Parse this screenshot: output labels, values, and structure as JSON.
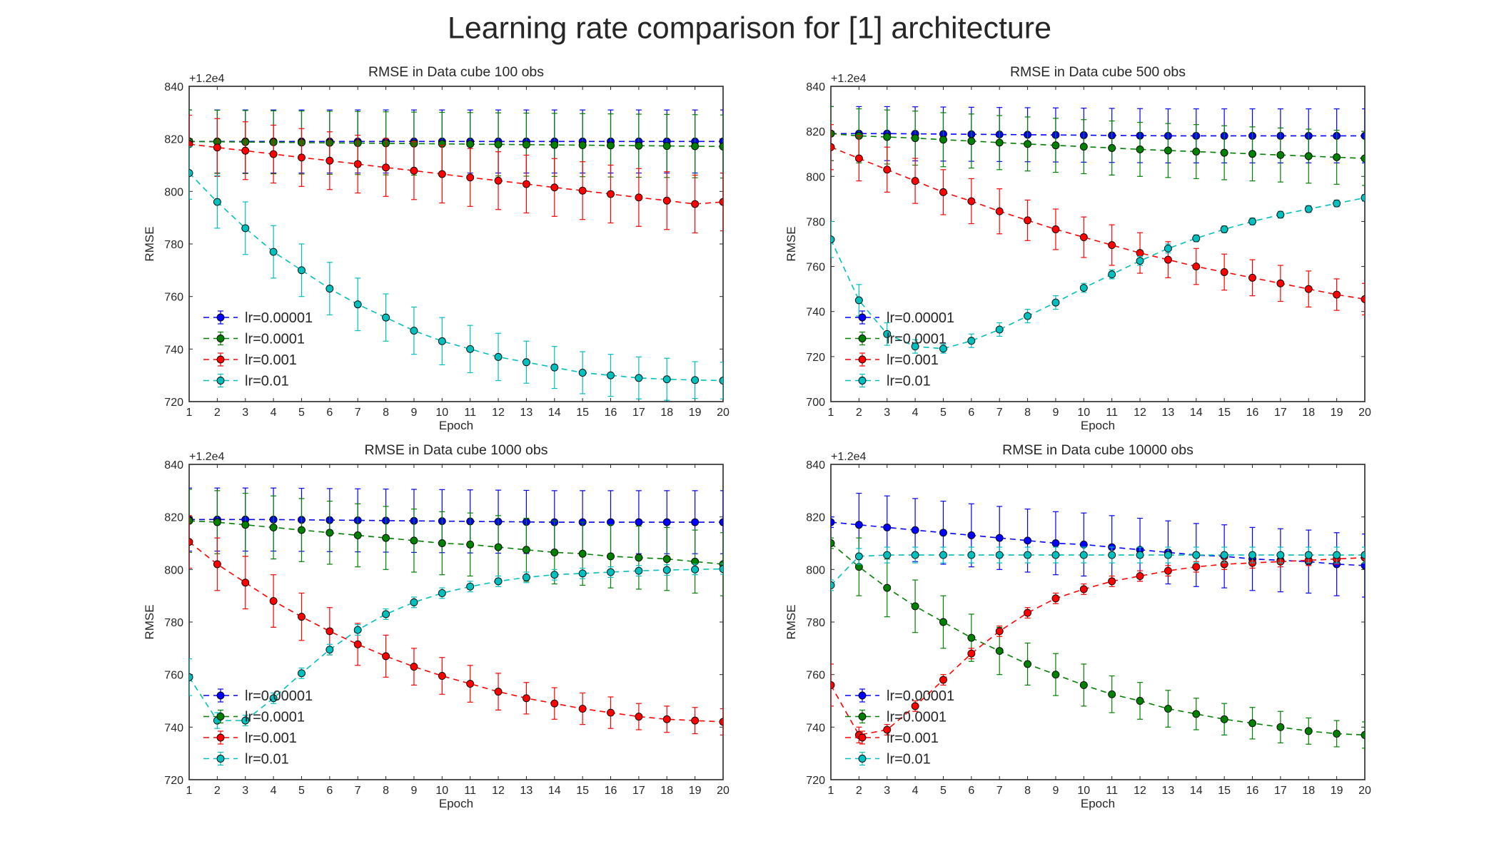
{
  "figure_title": "Learning rate comparison for [1] architecture",
  "colors": {
    "lr=0.00001": "#0000ff",
    "lr=0.0001": "#008000",
    "lr=0.001": "#ff0000",
    "lr=0.01": "#00bfbf"
  },
  "chart_data": [
    {
      "type": "line",
      "title": "RMSE in Data cube 100 obs",
      "xlabel": "Epoch",
      "ylabel": "RMSE",
      "offset_label": "+1.2e4",
      "x": [
        1,
        2,
        3,
        4,
        5,
        6,
        7,
        8,
        9,
        10,
        11,
        12,
        13,
        14,
        15,
        16,
        17,
        18,
        19,
        20
      ],
      "xlim": [
        1,
        20
      ],
      "ylim": [
        720,
        840
      ],
      "yticks": [
        720,
        740,
        760,
        780,
        800,
        820,
        840
      ],
      "series": [
        {
          "name": "lr=0.00001",
          "values": [
            819,
            819,
            819,
            819,
            819,
            819,
            819,
            819,
            819,
            819,
            819,
            819,
            819,
            819,
            819,
            819,
            819,
            819,
            819,
            819
          ],
          "err": [
            12,
            12,
            12,
            12,
            12,
            12,
            12,
            12,
            12,
            12,
            12,
            12,
            12,
            12,
            12,
            12,
            12,
            12,
            12,
            12
          ]
        },
        {
          "name": "lr=0.0001",
          "values": [
            819,
            818.9,
            818.8,
            818.7,
            818.6,
            818.5,
            818.4,
            818.3,
            818.2,
            818.1,
            818,
            817.9,
            817.8,
            817.7,
            817.6,
            817.5,
            817.4,
            817.3,
            817.2,
            817.1
          ],
          "err": [
            12,
            12,
            12,
            12,
            12,
            12,
            12,
            12,
            12,
            12,
            12,
            12,
            12,
            12,
            12,
            12,
            12,
            12,
            12,
            12
          ]
        },
        {
          "name": "lr=0.001",
          "values": [
            818,
            816.7,
            815.5,
            814.2,
            812.9,
            811.7,
            810.4,
            809.1,
            807.9,
            806.6,
            805.3,
            804.1,
            802.8,
            801.5,
            800.3,
            799,
            797.7,
            796.5,
            795.2,
            796
          ],
          "err": [
            11,
            11,
            11,
            11,
            11,
            11,
            11,
            11,
            11,
            11,
            11,
            11,
            11,
            11,
            11,
            11,
            11,
            11,
            11,
            11
          ]
        },
        {
          "name": "lr=0.01",
          "values": [
            807,
            796,
            786,
            777,
            770,
            763,
            757,
            752,
            747,
            743,
            740,
            737,
            735,
            733,
            731,
            730,
            729,
            728.5,
            728.2,
            728
          ],
          "err": [
            10,
            10,
            10,
            10,
            10,
            10,
            10,
            9,
            9,
            9,
            9,
            9,
            8,
            8,
            8,
            8,
            8,
            8,
            7,
            7
          ]
        }
      ],
      "legend": "lower-left"
    },
    {
      "type": "line",
      "title": "RMSE in Data cube 500 obs",
      "xlabel": "Epoch",
      "ylabel": "RMSE",
      "offset_label": "+1.2e4",
      "x": [
        1,
        2,
        3,
        4,
        5,
        6,
        7,
        8,
        9,
        10,
        11,
        12,
        13,
        14,
        15,
        16,
        17,
        18,
        19,
        20
      ],
      "xlim": [
        1,
        20
      ],
      "ylim": [
        700,
        840
      ],
      "yticks": [
        700,
        720,
        740,
        760,
        780,
        800,
        820,
        840
      ],
      "series": [
        {
          "name": "lr=0.00001",
          "values": [
            819,
            819,
            819,
            818.9,
            818.8,
            818.7,
            818.6,
            818.5,
            818.4,
            818.3,
            818.2,
            818.1,
            818,
            818,
            818,
            818,
            818,
            818,
            818,
            818
          ],
          "err": [
            12,
            12,
            12,
            12,
            12,
            12,
            12,
            12,
            12,
            12,
            12,
            12,
            12,
            12,
            12,
            12,
            12,
            12,
            12,
            12
          ]
        },
        {
          "name": "lr=0.0001",
          "values": [
            819,
            818,
            817.5,
            817,
            816.3,
            815.7,
            815,
            814.4,
            813.8,
            813.2,
            812.6,
            812,
            811.5,
            811,
            810.5,
            810,
            809.5,
            809,
            808.5,
            808
          ],
          "err": [
            12,
            12,
            12,
            12,
            12,
            12,
            12,
            12,
            12,
            12,
            12,
            12,
            12,
            12,
            12,
            12,
            12,
            12,
            12,
            12
          ]
        },
        {
          "name": "lr=0.001",
          "values": [
            813,
            808,
            803,
            798,
            793,
            789,
            784.5,
            780.5,
            776.5,
            773,
            769.5,
            766,
            763,
            760,
            757.5,
            755,
            752.5,
            750,
            747.5,
            745.5
          ],
          "err": [
            10,
            10,
            10,
            10,
            10,
            10,
            10,
            9,
            9,
            9,
            9,
            9,
            8,
            8,
            8,
            8,
            8,
            8,
            7,
            7
          ]
        },
        {
          "name": "lr=0.01",
          "values": [
            772,
            745,
            730,
            724.5,
            723.5,
            727,
            732,
            738,
            744,
            750.5,
            756.5,
            762.5,
            768,
            772.5,
            776.5,
            780,
            783,
            785.5,
            788,
            790.5
          ],
          "err": [
            8,
            7,
            5,
            3,
            2,
            3,
            3,
            3,
            3,
            2,
            2,
            2,
            2,
            1.5,
            1.5,
            1.5,
            1.5,
            1.5,
            1.5,
            1.5
          ]
        }
      ],
      "legend": "lower-left"
    },
    {
      "type": "line",
      "title": "RMSE in Data cube 1000 obs",
      "xlabel": "Epoch",
      "ylabel": "RMSE",
      "offset_label": "+1.2e4",
      "x": [
        1,
        2,
        3,
        4,
        5,
        6,
        7,
        8,
        9,
        10,
        11,
        12,
        13,
        14,
        15,
        16,
        17,
        18,
        19,
        20
      ],
      "xlim": [
        1,
        20
      ],
      "ylim": [
        720,
        840
      ],
      "yticks": [
        720,
        740,
        760,
        780,
        800,
        820,
        840
      ],
      "series": [
        {
          "name": "lr=0.00001",
          "values": [
            819,
            819,
            819,
            819,
            818.9,
            818.8,
            818.7,
            818.6,
            818.5,
            818.4,
            818.3,
            818.2,
            818.1,
            818,
            818,
            818,
            818,
            818,
            818,
            818
          ],
          "err": [
            12,
            12,
            12,
            12,
            12,
            12,
            12,
            12,
            12,
            12,
            12,
            12,
            12,
            12,
            12,
            12,
            12,
            12,
            12,
            12
          ]
        },
        {
          "name": "lr=0.0001",
          "values": [
            818.5,
            818,
            817,
            816,
            815,
            814,
            813,
            812,
            811,
            810,
            809.5,
            808.5,
            807.5,
            806.5,
            806,
            805,
            804.5,
            804,
            803,
            802
          ],
          "err": [
            12,
            12,
            12,
            12,
            12,
            12,
            12,
            12,
            12,
            12,
            12,
            12,
            12,
            12,
            12,
            12,
            12,
            12,
            12,
            12
          ]
        },
        {
          "name": "lr=0.001",
          "values": [
            810.5,
            802,
            795,
            788,
            782,
            776.5,
            771.5,
            767,
            763,
            759.5,
            756.5,
            753.5,
            751,
            749,
            747,
            745.5,
            744,
            743,
            742.5,
            742
          ],
          "err": [
            10,
            10,
            10,
            10,
            9,
            9,
            8,
            8,
            7,
            7,
            7,
            7,
            6,
            6,
            6,
            6,
            5,
            5,
            5,
            5
          ]
        },
        {
          "name": "lr=0.01",
          "values": [
            759,
            742.5,
            742.5,
            751,
            760.5,
            769.5,
            777,
            783,
            787.5,
            791,
            793.5,
            795.5,
            797,
            798,
            798.5,
            799,
            799.5,
            799.8,
            800,
            800.2
          ],
          "err": [
            7,
            3,
            2,
            2,
            2,
            2,
            2,
            2,
            2,
            2,
            2,
            2,
            2,
            2,
            2,
            2,
            2,
            2,
            2,
            2
          ]
        }
      ],
      "legend": "lower-left"
    },
    {
      "type": "line",
      "title": "RMSE in Data cube 10000 obs",
      "xlabel": "Epoch",
      "ylabel": "RMSE",
      "offset_label": "+1.2e4",
      "x": [
        1,
        2,
        3,
        4,
        5,
        6,
        7,
        8,
        9,
        10,
        11,
        12,
        13,
        14,
        15,
        16,
        17,
        18,
        19,
        20
      ],
      "xlim": [
        1,
        20
      ],
      "ylim": [
        720,
        840
      ],
      "yticks": [
        720,
        740,
        760,
        780,
        800,
        820,
        840
      ],
      "series": [
        {
          "name": "lr=0.00001",
          "values": [
            818,
            817,
            816,
            815,
            814,
            813,
            812,
            811,
            810,
            809.5,
            808.5,
            807.5,
            806.5,
            805.5,
            805,
            804,
            803.5,
            803,
            802,
            801.5
          ],
          "err": [
            2,
            12,
            12,
            12,
            12,
            12,
            12,
            12,
            12,
            12,
            12,
            12,
            12,
            12,
            12,
            12,
            12,
            12,
            12,
            12
          ]
        },
        {
          "name": "lr=0.0001",
          "values": [
            810,
            801,
            793,
            786,
            780,
            774,
            769,
            764,
            760,
            756,
            752.5,
            750,
            747,
            745,
            743,
            741.5,
            740,
            738.5,
            737.5,
            737
          ],
          "err": [
            2,
            11,
            11,
            10,
            10,
            9,
            9,
            8,
            8,
            8,
            7,
            7,
            7,
            6,
            6,
            6,
            6,
            5,
            5,
            5
          ]
        },
        {
          "name": "lr=0.001",
          "values": [
            756,
            737,
            739,
            748,
            758,
            768,
            776.5,
            783.5,
            789,
            792.5,
            795.5,
            797.5,
            799.5,
            801,
            802,
            802.5,
            803,
            803.5,
            804,
            804.5
          ],
          "err": [
            8,
            3,
            2,
            2,
            2,
            2,
            2,
            2,
            2,
            2,
            2,
            2,
            2,
            2,
            2,
            2,
            2,
            2,
            2,
            2
          ]
        },
        {
          "name": "lr=0.01",
          "values": [
            794,
            805,
            805.5,
            805.5,
            805.5,
            805.5,
            805.5,
            805.5,
            805.5,
            805.5,
            805.5,
            805.5,
            805.5,
            805.5,
            805.5,
            805.5,
            805.5,
            805.5,
            805.5,
            805.5
          ],
          "err": [
            2,
            3,
            3,
            3,
            3,
            3,
            3,
            3,
            3,
            3,
            3,
            3,
            3,
            3,
            3,
            3,
            3,
            3,
            3,
            3
          ]
        }
      ],
      "legend": "lower-left"
    }
  ]
}
